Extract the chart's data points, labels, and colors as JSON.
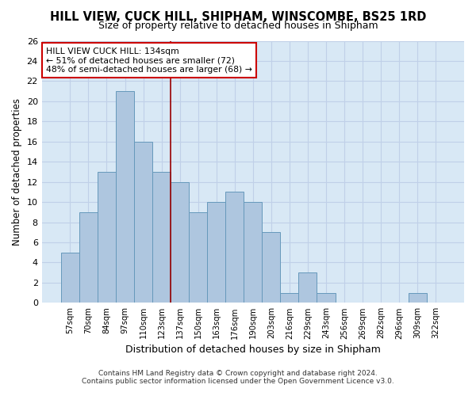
{
  "title": "HILL VIEW, CUCK HILL, SHIPHAM, WINSCOMBE, BS25 1RD",
  "subtitle": "Size of property relative to detached houses in Shipham",
  "xlabel": "Distribution of detached houses by size in Shipham",
  "ylabel": "Number of detached properties",
  "footnote1": "Contains HM Land Registry data © Crown copyright and database right 2024.",
  "footnote2": "Contains public sector information licensed under the Open Government Licence v3.0.",
  "categories": [
    "57sqm",
    "70sqm",
    "84sqm",
    "97sqm",
    "110sqm",
    "123sqm",
    "137sqm",
    "150sqm",
    "163sqm",
    "176sqm",
    "190sqm",
    "203sqm",
    "216sqm",
    "229sqm",
    "243sqm",
    "256sqm",
    "269sqm",
    "282sqm",
    "296sqm",
    "309sqm",
    "322sqm"
  ],
  "values": [
    5,
    9,
    13,
    21,
    16,
    13,
    12,
    9,
    10,
    11,
    10,
    7,
    1,
    3,
    1,
    0,
    0,
    0,
    0,
    1,
    0
  ],
  "bar_color": "#aec6df",
  "bar_edge_color": "#6699bb",
  "grid_color": "#c0d0e8",
  "bg_color": "#d8e8f5",
  "annotation_line1": "HILL VIEW CUCK HILL: 134sqm",
  "annotation_line2": "← 51% of detached houses are smaller (72)",
  "annotation_line3": "48% of semi-detached houses are larger (68) →",
  "vline_x_index": 5.5,
  "vline_color": "#990000",
  "annotation_box_color": "#ffffff",
  "annotation_box_edge": "#cc0000",
  "ylim": [
    0,
    26
  ],
  "yticks": [
    0,
    2,
    4,
    6,
    8,
    10,
    12,
    14,
    16,
    18,
    20,
    22,
    24,
    26
  ]
}
